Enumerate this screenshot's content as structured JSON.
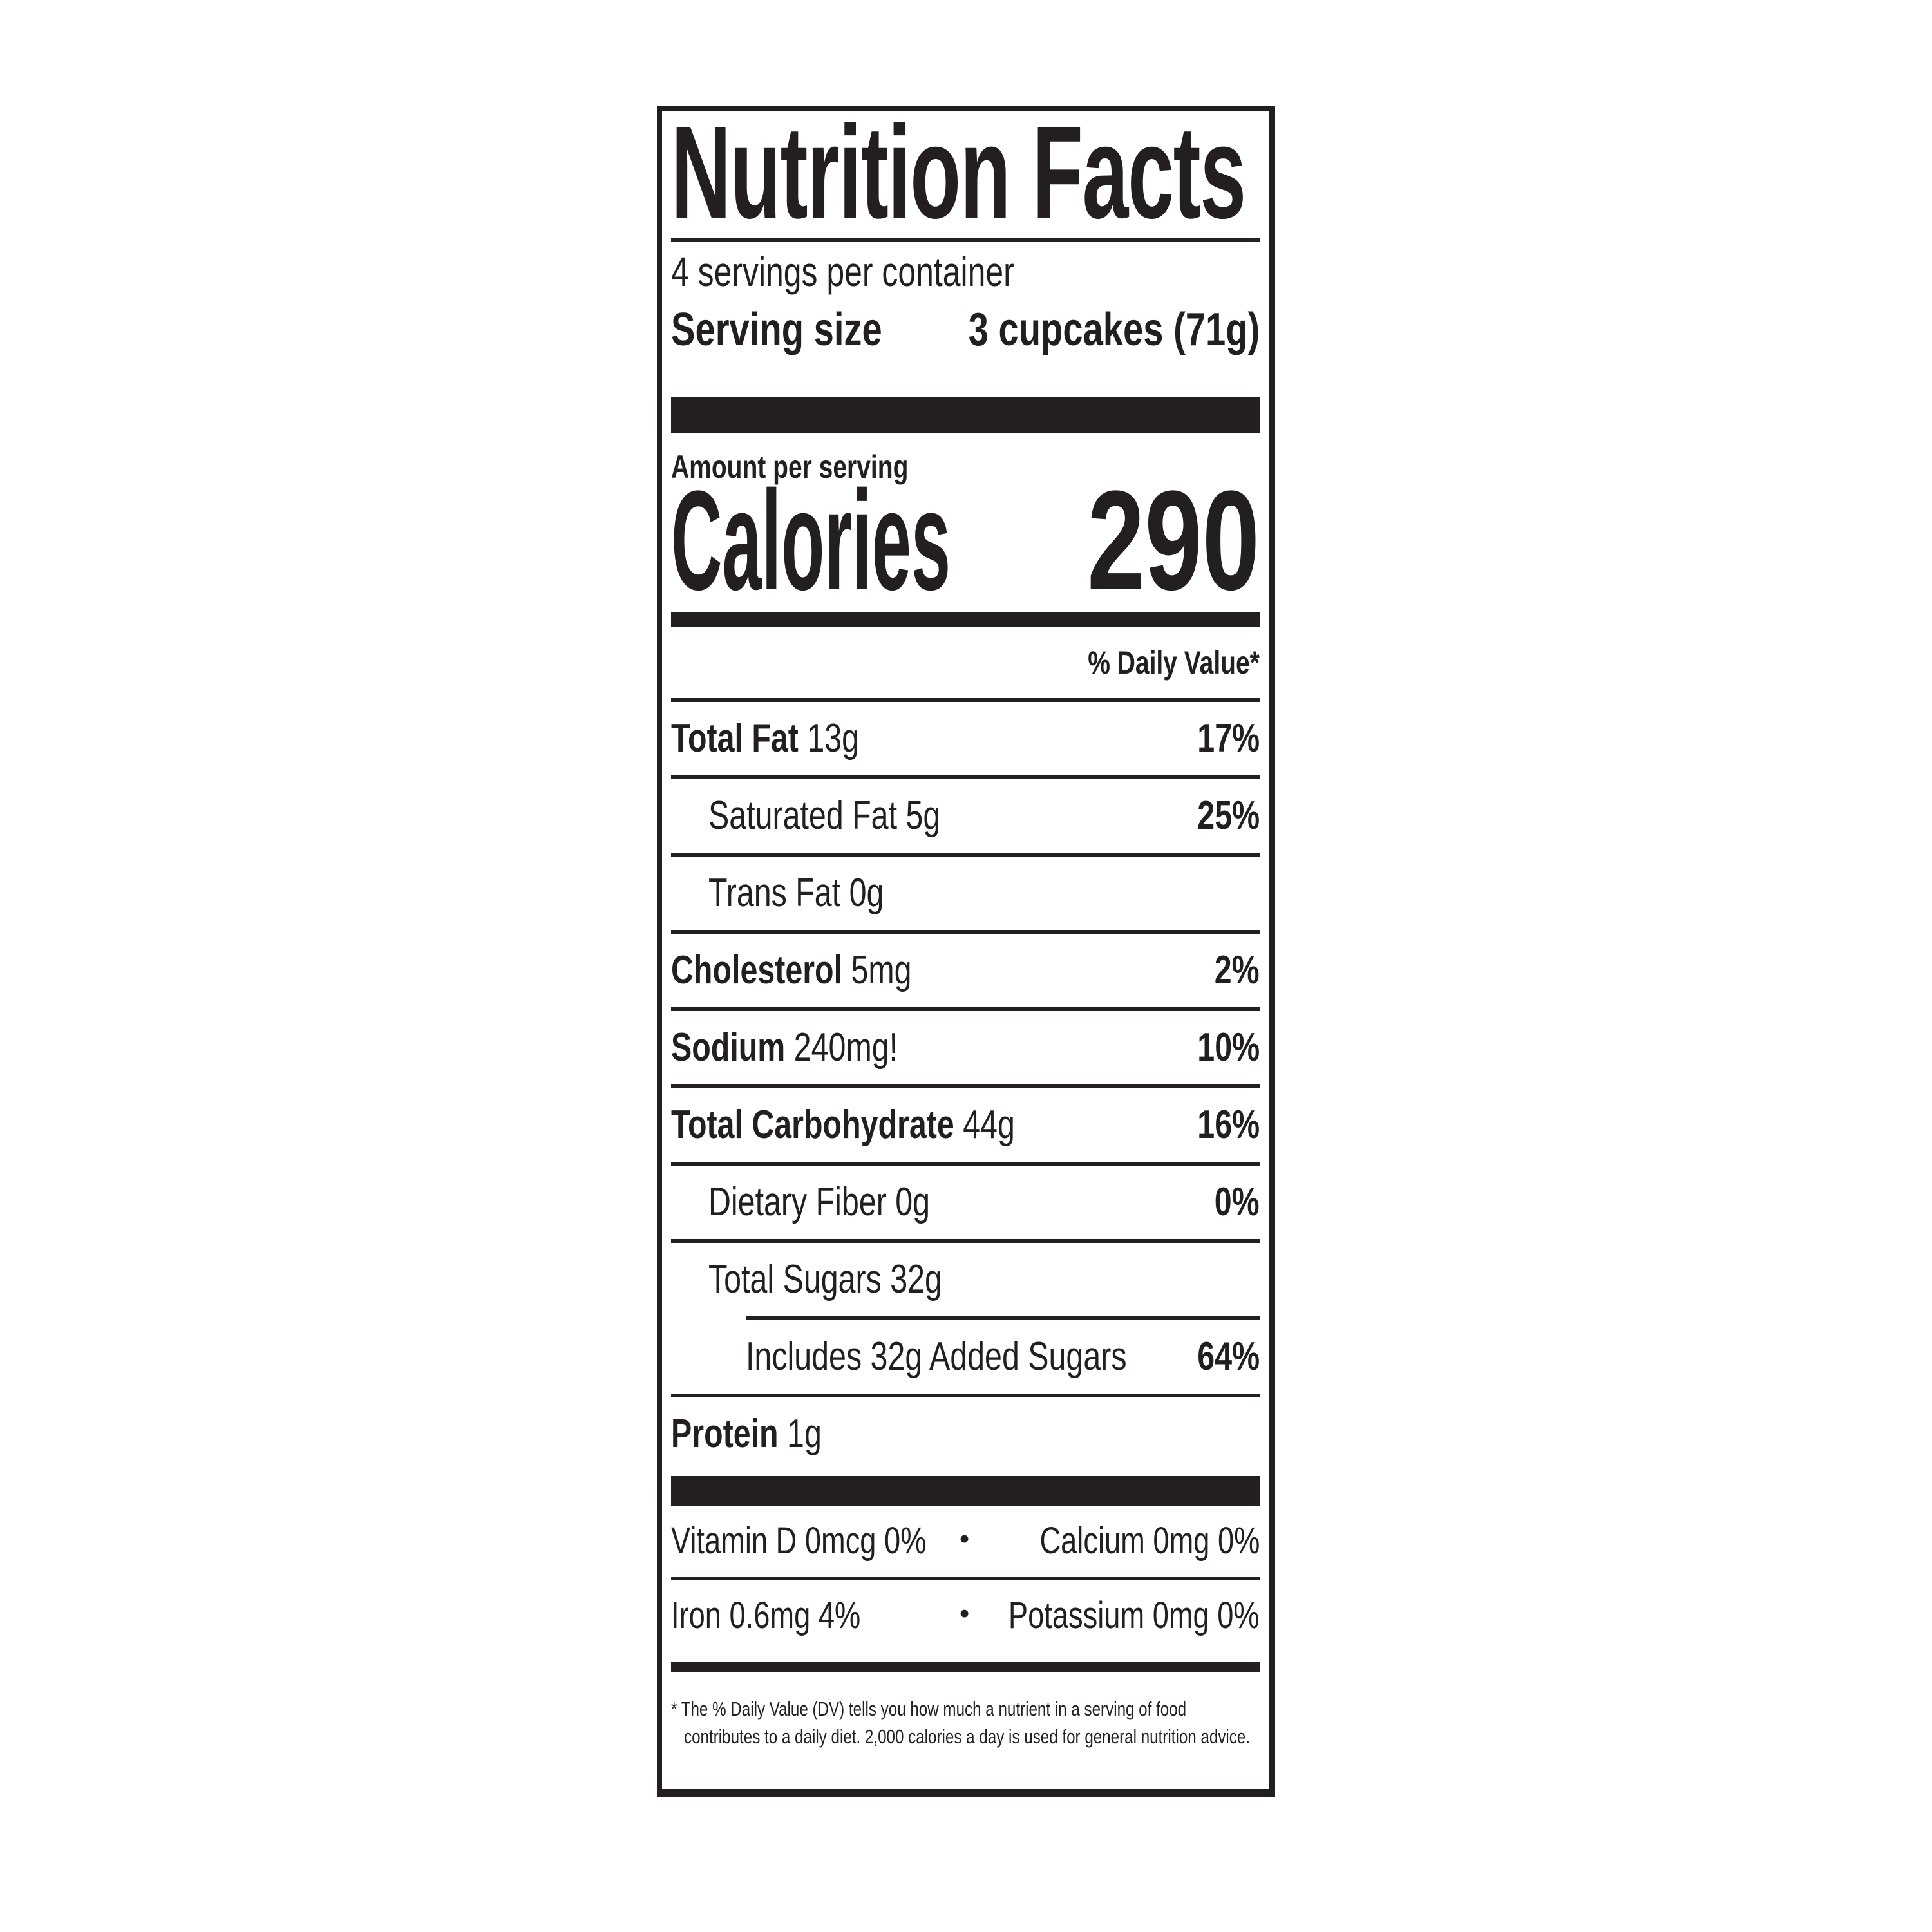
{
  "colors": {
    "ink": "#231f20",
    "background": "#ffffff"
  },
  "nutrition_label": {
    "title": "Nutrition Facts",
    "servings_per_container": "4 servings per container",
    "serving_size": {
      "label": "Serving size",
      "value": "3 cupcakes (71g)"
    },
    "amount_per_serving_label": "Amount per serving",
    "calories": {
      "label": "Calories",
      "value": "290"
    },
    "daily_value_header": "% Daily Value*",
    "nutrient_rows": [
      {
        "name": "Total Fat",
        "amount": "13g",
        "daily_value": "17%"
      },
      {
        "name": "Saturated Fat",
        "amount": "5g",
        "daily_value": "25%"
      },
      {
        "name": "Trans Fat",
        "amount": "0g",
        "daily_value": ""
      },
      {
        "name": "Cholesterol",
        "amount": "5mg",
        "daily_value": "2%"
      },
      {
        "name": "Sodium",
        "amount": "240mg!",
        "daily_value": "10%"
      },
      {
        "name": "Total Carbohydrate",
        "amount": "44g",
        "daily_value": "16%"
      },
      {
        "name": "Dietary Fiber",
        "amount": "0g",
        "daily_value": "0%"
      },
      {
        "name": "Total Sugars",
        "amount": "32g",
        "daily_value": ""
      },
      {
        "name": "Includes 32g Added Sugars",
        "amount": "",
        "daily_value": "64%"
      },
      {
        "name": "Protein",
        "amount": "1g",
        "daily_value": ""
      }
    ],
    "micronutrients": {
      "bullet": "•",
      "rows": [
        {
          "left": "Vitamin D 0mcg 0%",
          "right": "Calcium 0mg 0%"
        },
        {
          "left": "Iron 0.6mg 4%",
          "right": "Potassium 0mg 0%"
        }
      ]
    },
    "footnote": {
      "line1": "* The % Daily Value (DV) tells you how much a nutrient in a serving of food",
      "line2": "contributes to a daily diet. 2,000 calories a day is used for general nutrition advice."
    }
  }
}
